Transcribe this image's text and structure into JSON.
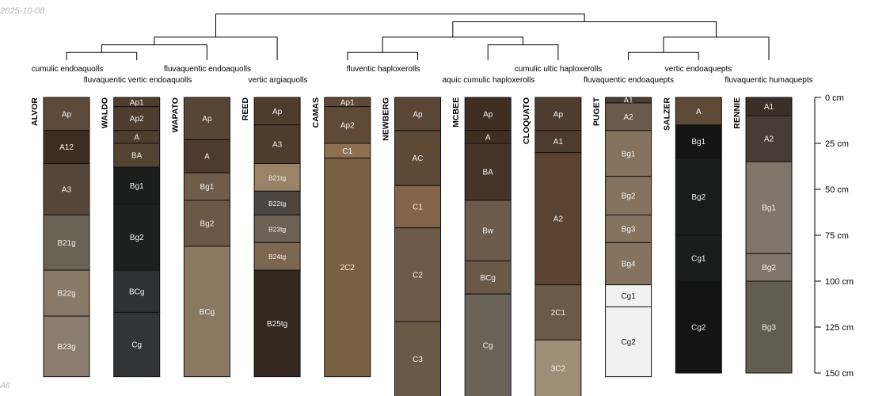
{
  "date_label": "2025-10-08",
  "footer_label": "All",
  "depth_axis": {
    "max_cm": 150,
    "ticks": [
      "0 cm",
      "25 cm",
      "50 cm",
      "75 cm",
      "100 cm",
      "125 cm",
      "150 cm"
    ]
  },
  "dendrogram": {
    "leaf_order": [
      "ALVOR",
      "WALDO",
      "WAPATO",
      "REED",
      "CAMAS",
      "NEWBERG",
      "MCBEE",
      "CLOQUATO",
      "PUGET",
      "SALZER",
      "RENNIE"
    ],
    "merges": [
      {
        "left": "ALVOR",
        "right": "WALDO",
        "level": 1
      },
      {
        "left": "ALVOR+WALDO",
        "right": "WAPATO",
        "level": 2
      },
      {
        "left": "ALVOR+WALDO+WAPATO",
        "right": "REED",
        "level": 3
      },
      {
        "left": "CAMAS",
        "right": "NEWBERG",
        "level": 1
      },
      {
        "left": "MCBEE",
        "right": "CLOQUATO",
        "level": 2
      },
      {
        "left": "CAMAS+NEWBERG",
        "right": "MCBEE+CLOQUATO",
        "level": 3
      },
      {
        "left": "PUGET",
        "right": "SALZER",
        "level": 1
      },
      {
        "left": "PUGET+SALZER",
        "right": "RENNIE",
        "level": 3
      },
      {
        "left": "CAMAS+NEWBERG+MCBEE+CLOQUATO",
        "right": "PUGET+SALZER+RENNIE",
        "level": 5
      },
      {
        "left": "ALVOR+WALDO+WAPATO+REED",
        "right": "CAMAS+NEWBERG+MCBEE+CLOQUATO+PUGET+SALZER+RENNIE",
        "level": 6
      }
    ],
    "max_level": 6
  },
  "taxa": [
    {
      "name": "cumulic endoaquolls",
      "row": 1
    },
    {
      "name": "fluvaquentic vertic endoaquolls",
      "row": 2
    },
    {
      "name": "fluvaquentic endoaquolls",
      "row": 1
    },
    {
      "name": "vertic argiaquolls",
      "row": 2
    },
    {
      "name": "fluventic haploxerolls",
      "row": 1
    },
    {
      "name": "aquic cumulic haploxerolls",
      "row": 2
    },
    {
      "name": "cumulic ultic haploxerolls",
      "row": 1
    },
    {
      "name": "fluvaquentic endoaquepts",
      "row": 2
    },
    {
      "name": "vertic endoaquepts",
      "row": 1
    },
    {
      "name": "fluvaquentic humaquepts",
      "row": 2
    }
  ],
  "profiles": [
    {
      "name": "ALVOR",
      "horizons": [
        {
          "name": "Ap",
          "top": 0,
          "bottom": 18,
          "color": "#5d4a3a"
        },
        {
          "name": "A12",
          "top": 18,
          "bottom": 36,
          "color": "#3e2c20"
        },
        {
          "name": "A3",
          "top": 36,
          "bottom": 64,
          "color": "#574538"
        },
        {
          "name": "B21g",
          "top": 64,
          "bottom": 94,
          "color": "#6b6256"
        },
        {
          "name": "B22g",
          "top": 94,
          "bottom": 119,
          "color": "#897966"
        },
        {
          "name": "B23g",
          "top": 119,
          "bottom": 152,
          "color": "#8b7d6d"
        }
      ]
    },
    {
      "name": "WALDO",
      "horizons": [
        {
          "name": "Ap1",
          "top": 0,
          "bottom": 5,
          "color": "#4e3e30"
        },
        {
          "name": "Ap2",
          "top": 5,
          "bottom": 18,
          "color": "#4e3e30"
        },
        {
          "name": "A",
          "top": 18,
          "bottom": 25,
          "color": "#4e3e30"
        },
        {
          "name": "BA",
          "top": 25,
          "bottom": 38,
          "color": "#524332"
        },
        {
          "name": "Bg1",
          "top": 38,
          "bottom": 58,
          "color": "#1b1e1d"
        },
        {
          "name": "Bg2",
          "top": 58,
          "bottom": 94,
          "color": "#1d201f"
        },
        {
          "name": "BCg",
          "top": 94,
          "bottom": 117,
          "color": "#303132"
        },
        {
          "name": "Cg",
          "top": 117,
          "bottom": 152,
          "color": "#333436"
        }
      ]
    },
    {
      "name": "WAPATO",
      "horizons": [
        {
          "name": "Ap",
          "top": 0,
          "bottom": 23,
          "color": "#574535"
        },
        {
          "name": "A",
          "top": 23,
          "bottom": 41,
          "color": "#4d3c2d"
        },
        {
          "name": "Bg1",
          "top": 41,
          "bottom": 56,
          "color": "#705c48"
        },
        {
          "name": "Bg2",
          "top": 56,
          "bottom": 81,
          "color": "#6c5847"
        },
        {
          "name": "BCg",
          "top": 81,
          "bottom": 152,
          "color": "#8b7862"
        }
      ]
    },
    {
      "name": "REED",
      "horizons": [
        {
          "name": "Ap",
          "top": 0,
          "bottom": 15,
          "color": "#4e3c2d"
        },
        {
          "name": "A3",
          "top": 15,
          "bottom": 36,
          "color": "#4e3c2d"
        },
        {
          "name": "B21tg",
          "top": 36,
          "bottom": 51,
          "color": "#998468"
        },
        {
          "name": "B22tg",
          "top": 51,
          "bottom": 64,
          "color": "#4c4540"
        },
        {
          "name": "B23tg",
          "top": 64,
          "bottom": 79,
          "color": "#6c6155"
        },
        {
          "name": "B24tg",
          "top": 79,
          "bottom": 94,
          "color": "#7d6751"
        },
        {
          "name": "B25tg",
          "top": 94,
          "bottom": 152,
          "color": "#33271f"
        }
      ]
    },
    {
      "name": "CAMAS",
      "horizons": [
        {
          "name": "Ap1",
          "top": 0,
          "bottom": 5,
          "color": "#5e4a37"
        },
        {
          "name": "Ap2",
          "top": 5,
          "bottom": 25,
          "color": "#5e4a37"
        },
        {
          "name": "C1",
          "top": 25,
          "bottom": 33,
          "color": "#8e7152"
        },
        {
          "name": "2C2",
          "top": 33,
          "bottom": 152,
          "color": "#7a5f43"
        }
      ]
    },
    {
      "name": "NEWBERG",
      "horizons": [
        {
          "name": "Ap",
          "top": 0,
          "bottom": 18,
          "color": "#5a4634"
        },
        {
          "name": "AC",
          "top": 18,
          "bottom": 48,
          "color": "#5d4936"
        },
        {
          "name": "C1",
          "top": 48,
          "bottom": 71,
          "color": "#836349"
        },
        {
          "name": "C2",
          "top": 71,
          "bottom": 122,
          "color": "#6e5a48"
        },
        {
          "name": "C3",
          "top": 122,
          "bottom": 163,
          "color": "#6b5947"
        }
      ]
    },
    {
      "name": "MCBEE",
      "horizons": [
        {
          "name": "Ap",
          "top": 0,
          "bottom": 18,
          "color": "#3f2f22"
        },
        {
          "name": "A",
          "top": 18,
          "bottom": 25,
          "color": "#3f2f22"
        },
        {
          "name": "BA",
          "top": 25,
          "bottom": 56,
          "color": "#45342a"
        },
        {
          "name": "Bw",
          "top": 56,
          "bottom": 89,
          "color": "#6c5b4b"
        },
        {
          "name": "BCg",
          "top": 89,
          "bottom": 107,
          "color": "#6b5948"
        },
        {
          "name": "Cg",
          "top": 107,
          "bottom": 163,
          "color": "#6b6359"
        }
      ]
    },
    {
      "name": "CLOQUATO",
      "horizons": [
        {
          "name": "Ap",
          "top": 0,
          "bottom": 18,
          "color": "#4f3e2f"
        },
        {
          "name": "A1",
          "top": 18,
          "bottom": 30,
          "color": "#4d3c2d"
        },
        {
          "name": "A2",
          "top": 30,
          "bottom": 102,
          "color": "#5a4330"
        },
        {
          "name": "2C1",
          "top": 102,
          "bottom": 132,
          "color": "#6c5a48"
        },
        {
          "name": "3C2",
          "top": 132,
          "bottom": 163,
          "color": "#9f8f79"
        }
      ]
    },
    {
      "name": "PUGET",
      "horizons": [
        {
          "name": "A1",
          "top": 0,
          "bottom": 3,
          "color": "#4c3d31"
        },
        {
          "name": "A2",
          "top": 3,
          "bottom": 18,
          "color": "#6a5a4b"
        },
        {
          "name": "Bg1",
          "top": 18,
          "bottom": 43,
          "color": "#85735f"
        },
        {
          "name": "Bg2",
          "top": 43,
          "bottom": 64,
          "color": "#85735f"
        },
        {
          "name": "Bg3",
          "top": 64,
          "bottom": 79,
          "color": "#85735f"
        },
        {
          "name": "Bg4",
          "top": 79,
          "bottom": 102,
          "color": "#85735f"
        },
        {
          "name": "Cg1",
          "top": 102,
          "bottom": 114,
          "color": "#f1f1f1"
        },
        {
          "name": "Cg2",
          "top": 114,
          "bottom": 152,
          "color": "#f1f1f1"
        }
      ]
    },
    {
      "name": "SALZER",
      "horizons": [
        {
          "name": "A",
          "top": 0,
          "bottom": 15,
          "color": "#5d4a37"
        },
        {
          "name": "Bg1",
          "top": 15,
          "bottom": 33,
          "color": "#141414"
        },
        {
          "name": "Bg2",
          "top": 33,
          "bottom": 75,
          "color": "#1b1d1c"
        },
        {
          "name": "Cg1",
          "top": 75,
          "bottom": 100,
          "color": "#1b1c1c"
        },
        {
          "name": "Cg2",
          "top": 100,
          "bottom": 150,
          "color": "#141414"
        }
      ]
    },
    {
      "name": "RENNIE",
      "horizons": [
        {
          "name": "A1",
          "top": 0,
          "bottom": 10,
          "color": "#3c2f28"
        },
        {
          "name": "A2",
          "top": 10,
          "bottom": 35,
          "color": "#483d36"
        },
        {
          "name": "Bg1",
          "top": 35,
          "bottom": 85,
          "color": "#7f756a"
        },
        {
          "name": "Bg2",
          "top": 85,
          "bottom": 100,
          "color": "#7f756a"
        },
        {
          "name": "Bg3",
          "top": 100,
          "bottom": 150,
          "color": "#625c52"
        }
      ]
    }
  ]
}
